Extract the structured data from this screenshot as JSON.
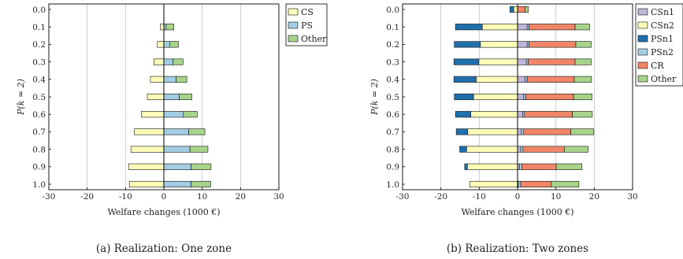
{
  "colors": {
    "CS": "#fdfdb8",
    "PS": "#a3cde3",
    "Other": "#a7d48a",
    "CSn1": "#bcb6db",
    "CSn2": "#fdfdb8",
    "PSn1": "#1f6fad",
    "PSn2": "#a3cde3",
    "CR": "#f08567"
  },
  "chart_data": [
    {
      "type": "bar",
      "orientation": "horizontal",
      "stacked": "diverging",
      "caption": "(a) Realization: One zone",
      "xlabel": "Welfare changes (1000 €)",
      "ylabel": "P(k = 2)",
      "categories": [
        "0.0",
        "0.1",
        "0.2",
        "0.3",
        "0.4",
        "0.5",
        "0.6",
        "0.7",
        "0.8",
        "0.9",
        "1.0"
      ],
      "xlim": [
        -30,
        30
      ],
      "xticks": [
        "-30",
        "-20",
        "-10",
        "0",
        "10",
        "20",
        "30"
      ],
      "grid": "vertical",
      "legend_position": "top-right",
      "series": [
        {
          "name": "CS",
          "color_key": "CS",
          "values": [
            0,
            -0.9,
            -1.7,
            -2.6,
            -3.5,
            -4.3,
            -5.9,
            -7.7,
            -8.6,
            -9.2,
            -9.0
          ]
        },
        {
          "name": "PS",
          "color_key": "PS",
          "values": [
            0,
            0.6,
            1.5,
            2.4,
            3.2,
            4.0,
            5.1,
            6.5,
            6.8,
            7.1,
            7.1
          ]
        },
        {
          "name": "Other",
          "color_key": "Other",
          "values": [
            0,
            2.0,
            2.3,
            2.6,
            2.8,
            3.3,
            3.6,
            4.2,
            4.7,
            5.2,
            5.1
          ]
        }
      ],
      "series_layout": [
        [
          "CS"
        ],
        [
          "PS",
          "Other"
        ]
      ]
    },
    {
      "type": "bar",
      "orientation": "horizontal",
      "stacked": "diverging",
      "caption": "(b) Realization: Two zones",
      "xlabel": "Welfare changes (1000 €)",
      "ylabel": "P(k = 2)",
      "categories": [
        "0.0",
        "0.1",
        "0.2",
        "0.3",
        "0.4",
        "0.5",
        "0.6",
        "0.7",
        "0.8",
        "0.9",
        "1.0"
      ],
      "xlim": [
        -30,
        30
      ],
      "xticks": [
        "-30",
        "-20",
        "-10",
        "0",
        "10",
        "20",
        "30"
      ],
      "grid": "vertical",
      "legend_position": "outside-top-right",
      "series": [
        {
          "name": "CSn1",
          "color_key": "CSn1",
          "values": [
            0,
            2.5,
            2.5,
            2.3,
            2.0,
            1.6,
            1.3,
            1.0,
            0.8,
            0.5,
            0.2
          ]
        },
        {
          "name": "CSn2",
          "color_key": "CSn2",
          "values": [
            -1.0,
            -9.2,
            -9.7,
            -10.1,
            -10.8,
            -11.5,
            -12.2,
            -13.0,
            -13.3,
            -13.1,
            -12.4
          ]
        },
        {
          "name": "PSn1",
          "color_key": "PSn1",
          "values": [
            -1.0,
            -7.0,
            -6.8,
            -6.5,
            -5.8,
            -5.0,
            -4.0,
            -3.0,
            -1.8,
            -0.7,
            0
          ]
        },
        {
          "name": "PSn2",
          "color_key": "PSn2",
          "values": [
            0,
            0.5,
            0.5,
            0.5,
            0.5,
            0.5,
            0.5,
            0.6,
            0.6,
            0.6,
            0.6
          ]
        },
        {
          "name": "CR",
          "color_key": "CR",
          "values": [
            2.0,
            12.0,
            12.2,
            12.2,
            12.3,
            12.5,
            12.5,
            12.3,
            10.8,
            9.0,
            8.0
          ]
        },
        {
          "name": "Other",
          "color_key": "Other",
          "values": [
            0.8,
            3.8,
            4.0,
            4.2,
            4.5,
            4.8,
            5.2,
            6.0,
            6.2,
            6.7,
            7.2
          ]
        }
      ],
      "series_layout": [
        [
          "CSn2",
          "PSn1"
        ],
        [
          "CSn1",
          "PSn2",
          "CR",
          "Other"
        ]
      ]
    }
  ]
}
